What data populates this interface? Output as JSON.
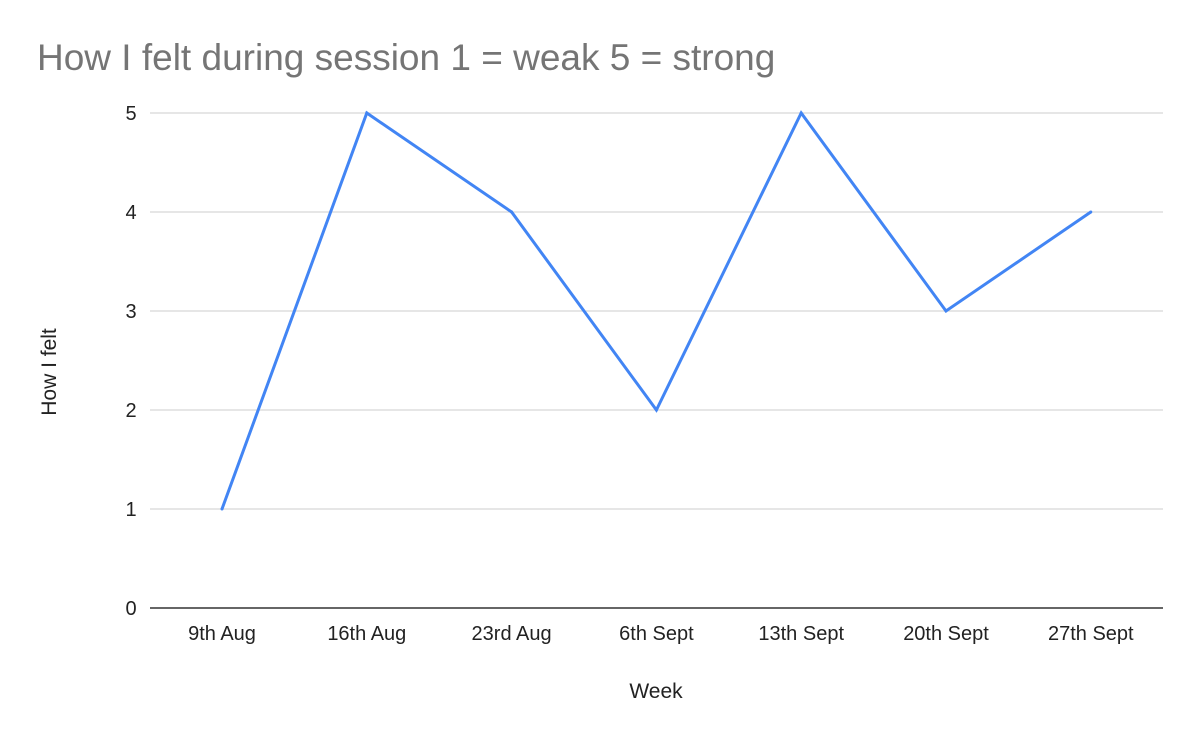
{
  "chart_data": {
    "type": "line",
    "title": "How I felt during session 1 = weak 5 = strong",
    "xlabel": "Week",
    "ylabel": "How I felt",
    "categories": [
      "9th Aug",
      "16th Aug",
      "23rd Aug",
      "6th Sept",
      "13th Sept",
      "20th Sept",
      "27th Sept"
    ],
    "series": [
      {
        "values": [
          1,
          5,
          4,
          2,
          5,
          3,
          4
        ],
        "color": "#4285f4"
      }
    ],
    "ylim": [
      0,
      5
    ],
    "yticks": [
      "0",
      "1",
      "2",
      "3",
      "4",
      "5"
    ],
    "grid": true,
    "legend": "none",
    "colors": {
      "title": "#757575",
      "gridline": "#cccccc",
      "baseline": "#333333",
      "text": "#222222"
    }
  }
}
